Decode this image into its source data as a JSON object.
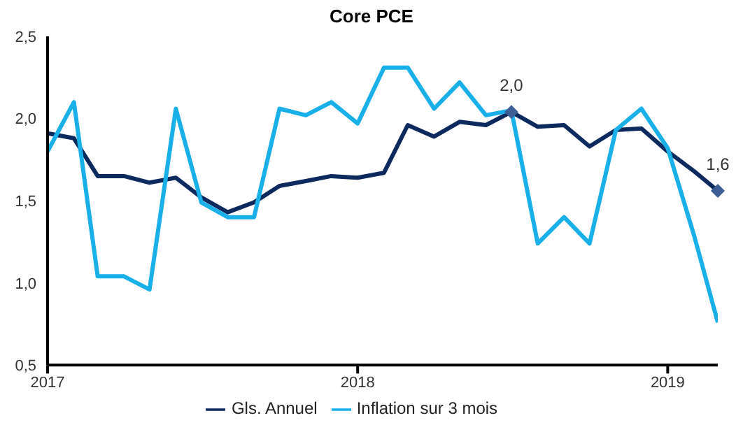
{
  "chart_data": {
    "type": "line",
    "title": "Core PCE",
    "x": [
      "2017-01",
      "2017-02",
      "2017-03",
      "2017-04",
      "2017-05",
      "2017-06",
      "2017-07",
      "2017-08",
      "2017-09",
      "2017-10",
      "2017-11",
      "2017-12",
      "2018-01",
      "2018-02",
      "2018-03",
      "2018-04",
      "2018-05",
      "2018-06",
      "2018-07",
      "2018-08",
      "2018-09",
      "2018-10",
      "2018-11",
      "2018-12",
      "2019-01",
      "2019-02",
      "2019-03"
    ],
    "series": [
      {
        "name": "Gls. Annuel",
        "color": "#0d2a5e",
        "values": [
          1.91,
          1.88,
          1.65,
          1.65,
          1.61,
          1.64,
          1.52,
          1.43,
          1.49,
          1.59,
          1.62,
          1.65,
          1.64,
          1.67,
          1.96,
          1.89,
          1.98,
          1.96,
          2.04,
          1.95,
          1.96,
          1.83,
          1.93,
          1.94,
          1.8,
          1.68,
          1.56
        ]
      },
      {
        "name": "Inflation sur 3 mois",
        "color": "#19b0ea",
        "values": [
          1.8,
          2.1,
          1.04,
          1.04,
          0.96,
          2.06,
          1.49,
          1.4,
          1.4,
          2.06,
          2.02,
          2.1,
          1.97,
          2.31,
          2.31,
          2.06,
          2.22,
          2.02,
          2.05,
          1.24,
          1.4,
          1.24,
          1.93,
          2.06,
          1.82,
          1.29,
          0.76
        ]
      }
    ],
    "xlim": [
      "2017-01",
      "2019-03"
    ],
    "xticks": [
      {
        "value": "2017-01",
        "label": "2017"
      },
      {
        "value": "2018-01",
        "label": "2018"
      },
      {
        "value": "2019-01",
        "label": "2019"
      }
    ],
    "ylim": [
      0.5,
      2.5
    ],
    "yticks": [
      {
        "value": 0.5,
        "label": "0,5"
      },
      {
        "value": 1.0,
        "label": "1,0"
      },
      {
        "value": 1.5,
        "label": "1,5"
      },
      {
        "value": 2.0,
        "label": "2,0"
      },
      {
        "value": 2.5,
        "label": "2,5"
      }
    ],
    "annotations": [
      {
        "text": "2,0",
        "x": "2018-07",
        "y": 2.04
      },
      {
        "text": "1,6",
        "x": "2019-03",
        "y": 1.56
      }
    ],
    "legend": "bottom",
    "grid": false,
    "marker": "none",
    "line_style": "solid"
  }
}
